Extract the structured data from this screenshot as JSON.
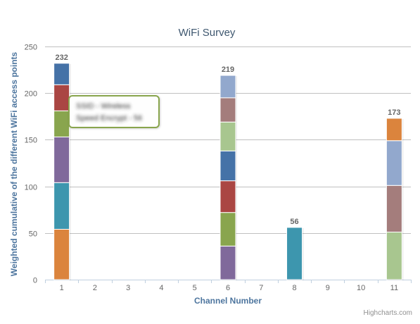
{
  "chart_data": {
    "type": "bar",
    "stacked": true,
    "title": "WiFi Survey",
    "xlabel": "Channel Number",
    "ylabel": "Weighted cumulative of the different WiFi access points",
    "categories": [
      "1",
      "2",
      "3",
      "4",
      "5",
      "6",
      "7",
      "8",
      "9",
      "10",
      "11"
    ],
    "ylim": [
      0,
      250
    ],
    "yticks": [
      0,
      50,
      100,
      150,
      200,
      250
    ],
    "grid": true,
    "stacks": [
      {
        "category": "1",
        "total": 232,
        "segments": [
          {
            "value": 54,
            "color": "#DB843D"
          },
          {
            "value": 50,
            "color": "#3D96AE"
          },
          {
            "value": 49,
            "color": "#80699B"
          },
          {
            "value": 28,
            "color": "#89A54E"
          },
          {
            "value": 28,
            "color": "#AA4643"
          },
          {
            "value": 23,
            "color": "#4572A7"
          }
        ]
      },
      {
        "category": "6",
        "total": 219,
        "segments": [
          {
            "value": 36,
            "color": "#80699B"
          },
          {
            "value": 36,
            "color": "#89A54E"
          },
          {
            "value": 34,
            "color": "#AA4643"
          },
          {
            "value": 32,
            "color": "#4572A7"
          },
          {
            "value": 31,
            "color": "#A8C68F"
          },
          {
            "value": 26,
            "color": "#A47D7C"
          },
          {
            "value": 24,
            "color": "#92A8CD"
          }
        ]
      },
      {
        "category": "8",
        "total": 56,
        "segments": [
          {
            "value": 56,
            "color": "#3D96AE"
          }
        ]
      },
      {
        "category": "11",
        "total": 173,
        "segments": [
          {
            "value": 51,
            "color": "#A8C68F"
          },
          {
            "value": 50,
            "color": "#A47D7C"
          },
          {
            "value": 48,
            "color": "#92A8CD"
          },
          {
            "value": 24,
            "color": "#DB843D"
          }
        ]
      }
    ],
    "tooltip": {
      "lines": [
        "SSID - Wireless",
        "Speed Encrypt - 56"
      ],
      "border_color": "#89A54E"
    },
    "credits": "Highcharts.com"
  }
}
